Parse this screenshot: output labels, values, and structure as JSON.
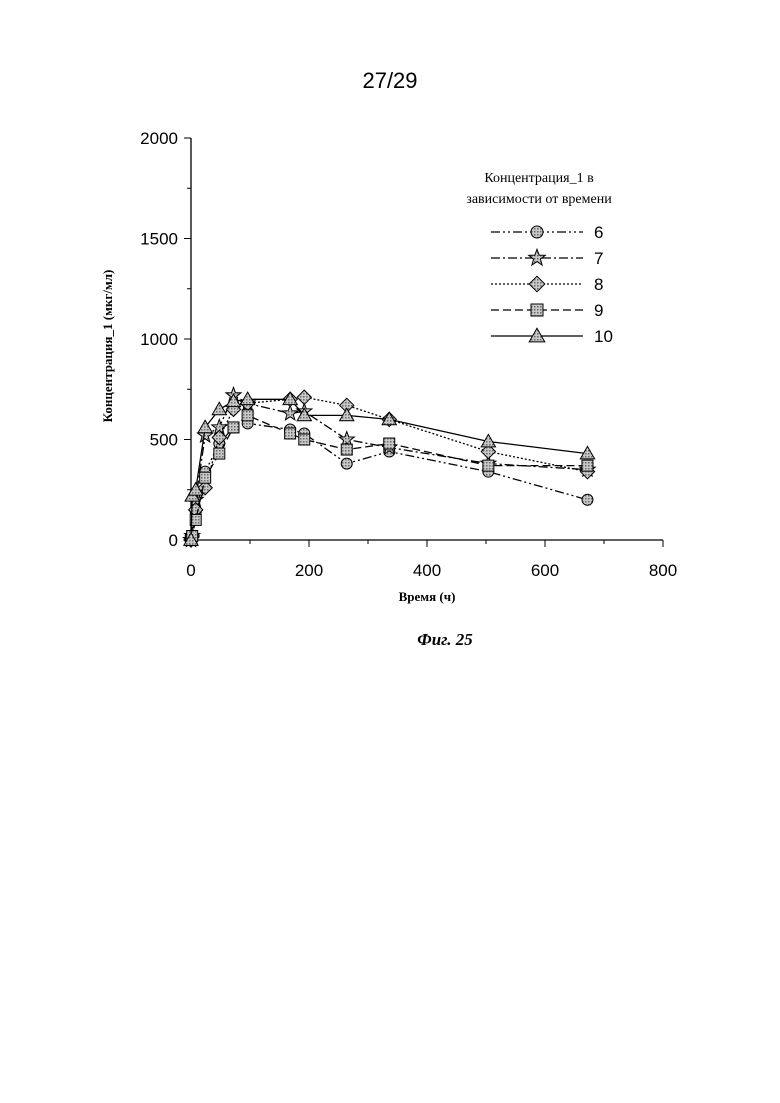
{
  "page_number": "27/29",
  "figure_caption": "Фиг. 25",
  "chart_data": {
    "type": "line",
    "title": "",
    "xlabel": "Время (ч)",
    "ylabel": "Концентрация_1 (мкг/мл)",
    "xlim": [
      0,
      800
    ],
    "ylim": [
      0,
      2000
    ],
    "xticks": [
      0,
      200,
      400,
      600,
      800
    ],
    "yticks": [
      0,
      500,
      1000,
      1500,
      2000
    ],
    "grid": false,
    "legend": {
      "title_line1": "Концентрация_1 в",
      "title_line2": "зависимости от времени",
      "placement": "top-right"
    },
    "series": [
      {
        "name": "6",
        "marker": "circle",
        "line_style": "dash-dot-dot",
        "x": [
          0,
          2,
          8,
          24,
          48,
          72,
          96,
          168,
          192,
          264,
          336,
          504,
          672
        ],
        "y": [
          0,
          10,
          140,
          340,
          480,
          560,
          580,
          550,
          530,
          380,
          440,
          340,
          200
        ]
      },
      {
        "name": "7",
        "marker": "star",
        "line_style": "dash-dot",
        "x": [
          0,
          2,
          8,
          24,
          48,
          72,
          96,
          168,
          192,
          264,
          336,
          504,
          672
        ],
        "y": [
          0,
          20,
          200,
          520,
          560,
          720,
          680,
          630,
          640,
          500,
          460,
          380,
          350
        ]
      },
      {
        "name": "8",
        "marker": "diamond",
        "line_style": "dotted",
        "x": [
          0,
          2,
          8,
          24,
          48,
          72,
          96,
          168,
          192,
          264,
          336,
          504,
          672
        ],
        "y": [
          0,
          20,
          150,
          260,
          510,
          650,
          680,
          700,
          710,
          670,
          600,
          440,
          340
        ]
      },
      {
        "name": "9",
        "marker": "square",
        "line_style": "dashed",
        "x": [
          0,
          2,
          8,
          24,
          48,
          72,
          96,
          168,
          192,
          264,
          336,
          504,
          672
        ],
        "y": [
          0,
          20,
          100,
          310,
          430,
          560,
          620,
          530,
          500,
          450,
          480,
          370,
          370
        ]
      },
      {
        "name": "10",
        "marker": "triangle",
        "line_style": "solid",
        "x": [
          0,
          2,
          8,
          24,
          48,
          72,
          96,
          168,
          192,
          264,
          336,
          504,
          672
        ],
        "y": [
          0,
          220,
          250,
          560,
          650,
          690,
          700,
          700,
          620,
          620,
          600,
          490,
          430
        ]
      }
    ]
  }
}
